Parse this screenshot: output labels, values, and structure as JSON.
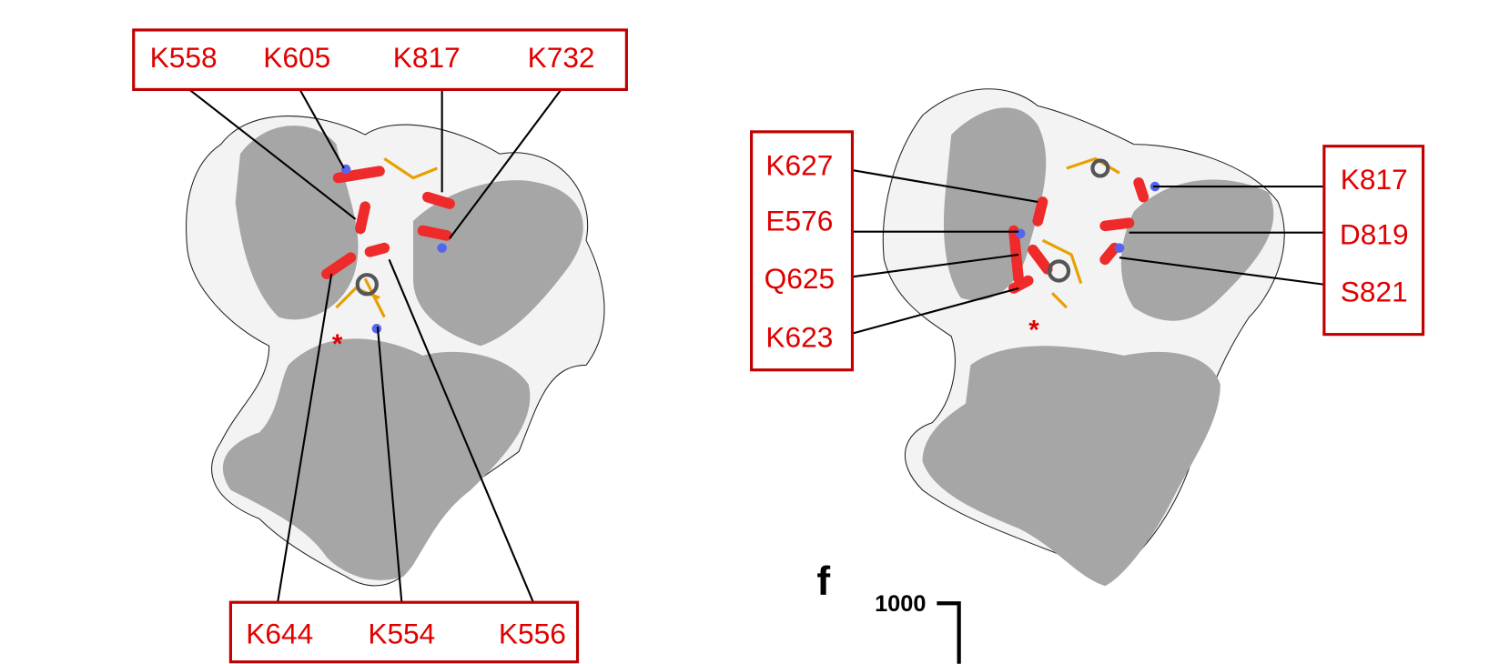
{
  "left_panel": {
    "top_labels": [
      "K558",
      "K605",
      "K817",
      "K732"
    ],
    "bottom_labels": [
      "K644",
      "K554",
      "K556"
    ],
    "marker": "*"
  },
  "right_panel": {
    "left_labels": [
      "K627",
      "E576",
      "Q625",
      "K623"
    ],
    "right_labels": [
      "K817",
      "D819",
      "S821"
    ],
    "marker": "*"
  },
  "next_panel": {
    "letter": "f",
    "axis_tick": "1000"
  }
}
